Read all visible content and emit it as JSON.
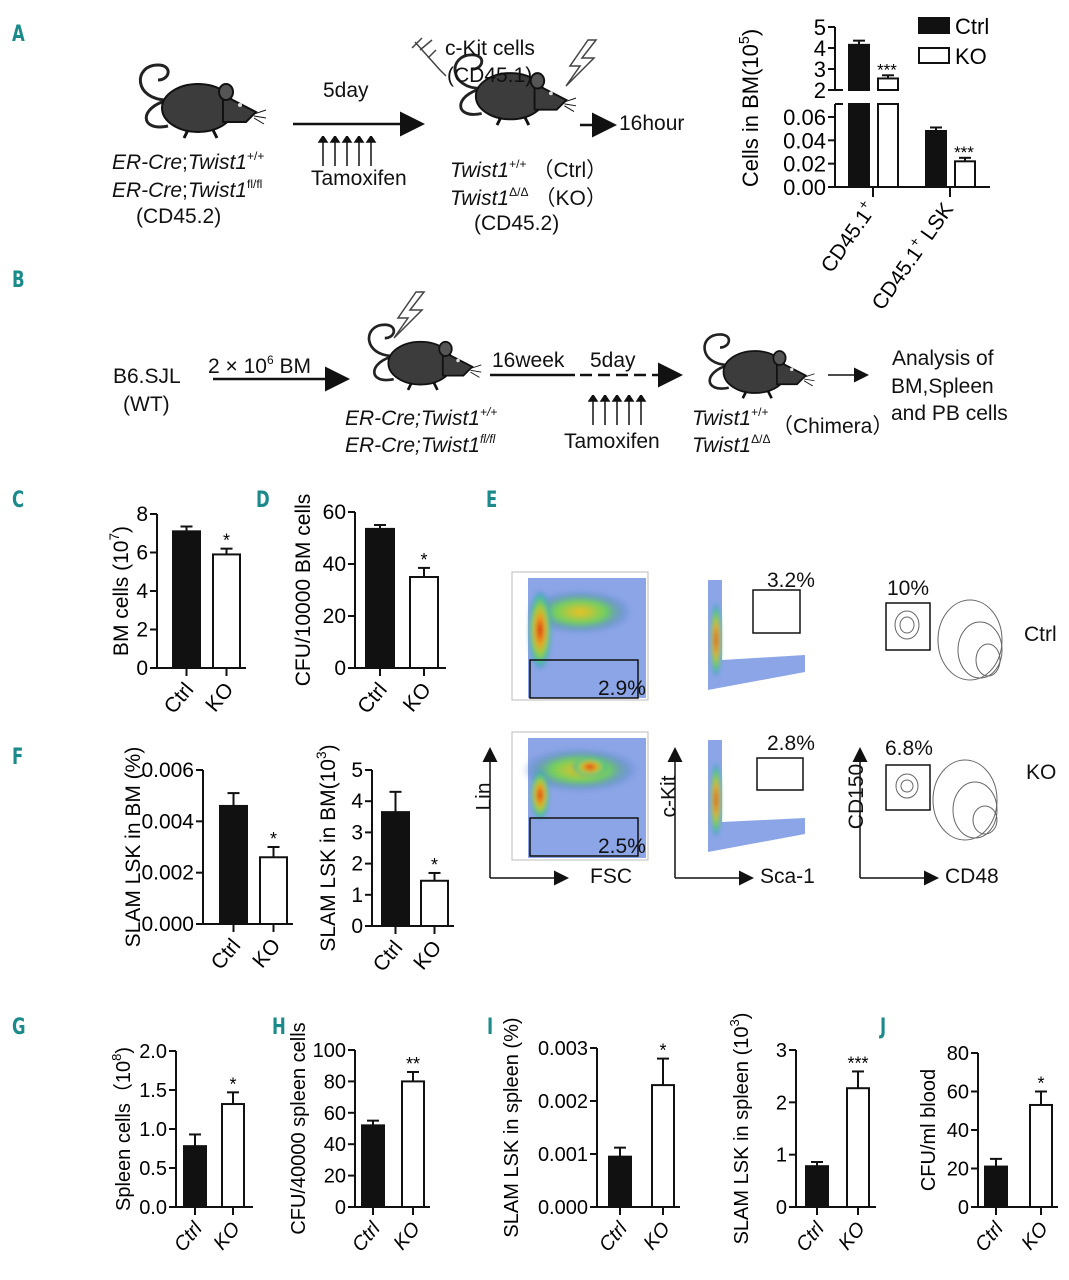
{
  "panel_labels": [
    "A",
    "B",
    "C",
    "D",
    "E",
    "F",
    "G",
    "H",
    "I",
    "J"
  ],
  "colors": {
    "panel_label": "#1a8a8a",
    "ctrl": "#111111",
    "ko": "#ffffff"
  },
  "icons": [
    "mouse-icon",
    "lightning-icon",
    "syringe-icon",
    "arrow-icon"
  ],
  "diagram_a": {
    "geno1_prefix": "ER-Cre",
    "geno1_sep": ";",
    "geno1_gene": "Twist1",
    "geno1_sup": "+/+",
    "geno2_prefix": "ER-Cre",
    "geno2_sep": ";",
    "geno2_gene": "Twist1",
    "geno2_sup": "fl/fl",
    "donor_strain": "(CD45.2)",
    "duration": "5day",
    "treatment": "Tamoxifen",
    "injected": "c-Kit cells",
    "injected_strain": "(CD45.1)",
    "endpoint": "16hour",
    "res1_gene": "Twist1",
    "res1_sup": "+/+",
    "res1_label": "（Ctrl）",
    "res2_gene": "Twist1",
    "res2_sup": "Δ/Δ",
    "res2_label": "（KO）",
    "res_strain": "(CD45.2)"
  },
  "diagram_b": {
    "donor": "B6.SJL",
    "donor_type": "(WT)",
    "dose_prefix": "2 × 10",
    "dose_sup": "6",
    "dose_suffix": " BM",
    "geno1_prefix": "ER-Cre;",
    "geno1_gene": "Twist1",
    "geno1_sup": "+/+",
    "geno2_prefix": "ER-Cre;",
    "geno2_gene": "Twist1",
    "geno2_sup": "fl/fl",
    "wait": "16week",
    "duration": "5day",
    "treatment": "Tamoxifen",
    "res1_gene": "Twist1",
    "res1_sup": "+/+",
    "res2_gene": "Twist1",
    "res2_sup": "Δ/Δ",
    "res_label": "（Chimera）",
    "analysis_1": "Analysis of",
    "analysis_2": "BM,Spleen",
    "analysis_3": "and PB cells"
  },
  "flow_e": {
    "rows": [
      "Ctrl",
      "KO"
    ],
    "gates": {
      "lin_neg": [
        "2.9%",
        "2.5%"
      ],
      "ckit_sca1": [
        "3.2%",
        "2.8%"
      ],
      "cd150_cd48": [
        "10%",
        "6.8%"
      ]
    },
    "axes": {
      "x1": "FSC",
      "y1": "Lin",
      "x2": "Sca-1",
      "y2": "c-Kit",
      "x3": "CD48",
      "y3": "CD150"
    }
  },
  "chart_data": [
    {
      "id": "A",
      "type": "bar",
      "categories": [
        [
          "CD45.1",
          "+",
          ""
        ],
        [
          "CD45.1",
          "+",
          " LSK"
        ]
      ],
      "series": [
        {
          "name": "Ctrl",
          "values": [
            4.15,
            0.048
          ],
          "errors": [
            0.2,
            0.003
          ]
        },
        {
          "name": "KO",
          "values": [
            2.55,
            0.022
          ],
          "errors": [
            0.15,
            0.003
          ]
        }
      ],
      "significance": [
        "***",
        "***"
      ],
      "ylabel": {
        "text": "Cells in BM(10",
        "sup": "5",
        "suffix": ")"
      },
      "broken_axis": {
        "upper": {
          "ylim": [
            2,
            5
          ],
          "yticks": [
            "2",
            "3",
            "4",
            "5"
          ]
        },
        "lower": {
          "ylim": [
            0,
            0.07
          ],
          "yticks": [
            "0.00",
            "0.02",
            "0.04",
            "0.06"
          ]
        }
      },
      "legend": "top-right"
    },
    {
      "id": "C",
      "type": "bar",
      "categories": [
        "Ctrl",
        "KO"
      ],
      "values": [
        7.1,
        5.9
      ],
      "errors": [
        0.25,
        0.3
      ],
      "significance": "*",
      "ylabel": {
        "text": "BM cells (10",
        "sup": "7",
        "suffix": ")"
      },
      "ylim": [
        0,
        8
      ],
      "yticks": [
        "0",
        "2",
        "4",
        "6",
        "8"
      ]
    },
    {
      "id": "D",
      "type": "bar",
      "categories": [
        "Ctrl",
        "KO"
      ],
      "values": [
        53.5,
        35
      ],
      "errors": [
        1.5,
        3.5
      ],
      "significance": "*",
      "ylabel": {
        "text": "CFU/10000 BM cells",
        "sup": "",
        "suffix": ""
      },
      "ylim": [
        0,
        60
      ],
      "yticks": [
        "0",
        "20",
        "40",
        "60"
      ]
    },
    {
      "id": "F1",
      "type": "bar",
      "categories": [
        "Ctrl",
        "KO"
      ],
      "values": [
        0.0046,
        0.0026
      ],
      "errors": [
        0.0005,
        0.0004
      ],
      "significance": "*",
      "ylabel": {
        "text": "SLAM LSK in BM (%)",
        "sup": "",
        "suffix": ""
      },
      "ylim": [
        0,
        0.006
      ],
      "yticks": [
        "0.000",
        "0.002",
        "0.004",
        "0.006"
      ]
    },
    {
      "id": "F2",
      "type": "bar",
      "categories": [
        "Ctrl",
        "KO"
      ],
      "values": [
        3.65,
        1.45
      ],
      "errors": [
        0.65,
        0.25
      ],
      "significance": "*",
      "ylabel": {
        "text": "SLAM LSK in BM(10",
        "sup": "3",
        "suffix": ")"
      },
      "ylim": [
        0,
        5
      ],
      "yticks": [
        "0",
        "1",
        "2",
        "3",
        "4",
        "5"
      ]
    },
    {
      "id": "G",
      "type": "bar",
      "categories": [
        "Ctrl",
        "KO"
      ],
      "values": [
        0.78,
        1.32
      ],
      "errors": [
        0.15,
        0.15
      ],
      "significance": "*",
      "ylabel": {
        "text": "Spleen cells（10",
        "sup": "8",
        "suffix": ")"
      },
      "ylim": [
        0,
        2
      ],
      "yticks": [
        "0.0",
        "0.5",
        "1.0",
        "1.5",
        "2.0"
      ]
    },
    {
      "id": "H",
      "type": "bar",
      "categories": [
        "Ctrl",
        "KO"
      ],
      "values": [
        52,
        80
      ],
      "errors": [
        3,
        6
      ],
      "significance": "**",
      "ylabel": {
        "text": "CFU/40000 spleen cells",
        "sup": "",
        "suffix": ""
      },
      "ylim": [
        0,
        100
      ],
      "yticks": [
        "0",
        "20",
        "40",
        "60",
        "80",
        "100"
      ]
    },
    {
      "id": "I1",
      "type": "bar",
      "categories": [
        "Ctrl",
        "KO"
      ],
      "values": [
        0.00095,
        0.0023
      ],
      "errors": [
        0.00017,
        0.0005
      ],
      "significance": "*",
      "ylabel": {
        "text": "SLAM LSK in spleen (%)",
        "sup": "",
        "suffix": ""
      },
      "ylim": [
        0,
        0.003
      ],
      "yticks": [
        "0.000",
        "0.001",
        "0.002",
        "0.003"
      ]
    },
    {
      "id": "I2",
      "type": "bar",
      "categories": [
        "Ctrl",
        "KO"
      ],
      "values": [
        0.78,
        2.27
      ],
      "errors": [
        0.08,
        0.32
      ],
      "significance": "***",
      "ylabel": {
        "text": "SLAM LSK in spleen (10",
        "sup": "3",
        "suffix": ")"
      },
      "ylim": [
        0,
        3
      ],
      "yticks": [
        "0",
        "1",
        "2",
        "3"
      ]
    },
    {
      "id": "J",
      "type": "bar",
      "categories": [
        "Ctrl",
        "KO"
      ],
      "values": [
        21,
        53
      ],
      "errors": [
        4,
        7
      ],
      "significance": "*",
      "ylabel": {
        "text": "CFU/ml blood",
        "sup": "",
        "suffix": ""
      },
      "ylim": [
        0,
        80
      ],
      "yticks": [
        "0",
        "20",
        "40",
        "60",
        "80"
      ]
    }
  ]
}
